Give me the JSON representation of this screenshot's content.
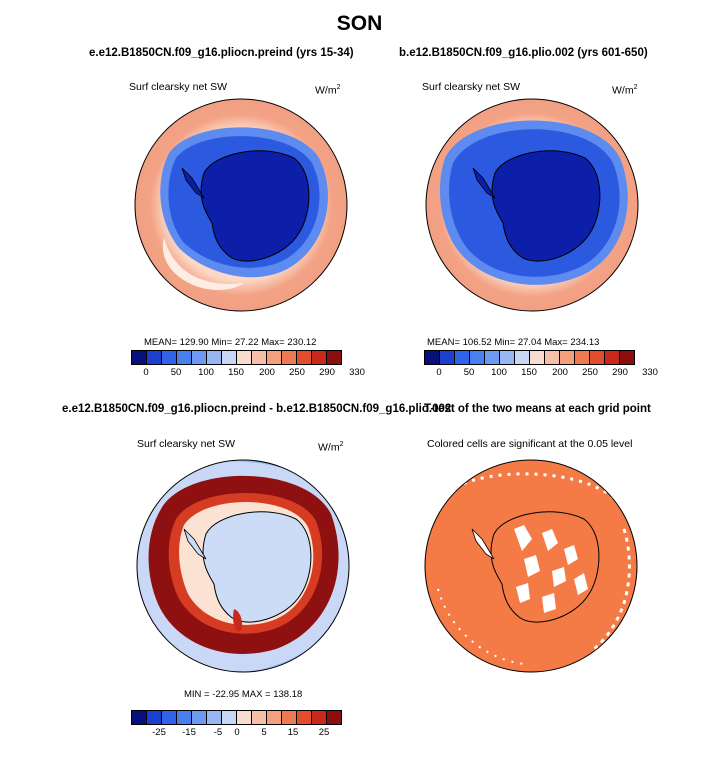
{
  "title": "SON",
  "panels": [
    {
      "id": "p1",
      "title": "e.e12.B1850CN.f09_g16.pliocn.preind (yrs 15-34)",
      "variable": "Surf clearsky net SW",
      "units": "W/m",
      "units_sup": "2",
      "stats": "MEAN= 129.90   Min=  27.22   Max= 230.12",
      "colorbar_ticks": [
        "0",
        "50",
        "100",
        "150",
        "200",
        "250",
        "290",
        "330"
      ]
    },
    {
      "id": "p2",
      "title": "b.e12.B1850CN.f09_g16.plio.002 (yrs 601-650)",
      "variable": "Surf clearsky net SW",
      "units": "W/m",
      "units_sup": "2",
      "stats": "MEAN= 106.52   Min=  27.04   Max= 234.13",
      "colorbar_ticks": [
        "0",
        "50",
        "100",
        "150",
        "200",
        "250",
        "290",
        "330"
      ]
    },
    {
      "id": "p3",
      "title": "e.e12.B1850CN.f09_g16.pliocn.preind - b.e12.B1850CN.f09_g16.plio.002",
      "variable": "Surf clearsky net SW",
      "units": "W/m",
      "units_sup": "2",
      "stats": "MIN = -22.95  MAX = 138.18",
      "colorbar_ticks": [
        "-25",
        "-15",
        "-5",
        "0",
        "5",
        "15",
        "25"
      ]
    },
    {
      "id": "p4",
      "title": "T-test of the two means at each grid point",
      "note": "Colored cells are significant at the 0.05 level"
    }
  ],
  "colors": {
    "abs_scale": [
      "#08107a",
      "#1c3fd0",
      "#2f63e8",
      "#4a7ff0",
      "#6c9af2",
      "#98b6f0",
      "#c9d8f2",
      "#f7ddd0",
      "#f6c0a8",
      "#f4a07d",
      "#ee7a52",
      "#e24e2c",
      "#c8291b",
      "#8a0f0e"
    ],
    "diff_scale": [
      "#08107a",
      "#1c3fd0",
      "#2f63e8",
      "#4a7ff0",
      "#6c9af2",
      "#98b6f0",
      "#c9d8f2",
      "#f7ddd0",
      "#f6c0a8",
      "#f4a07d",
      "#ee7a52",
      "#e24e2c",
      "#c8291b",
      "#8a0f0e"
    ],
    "ttest_fill": "#f47b45",
    "coast": "#000000"
  }
}
